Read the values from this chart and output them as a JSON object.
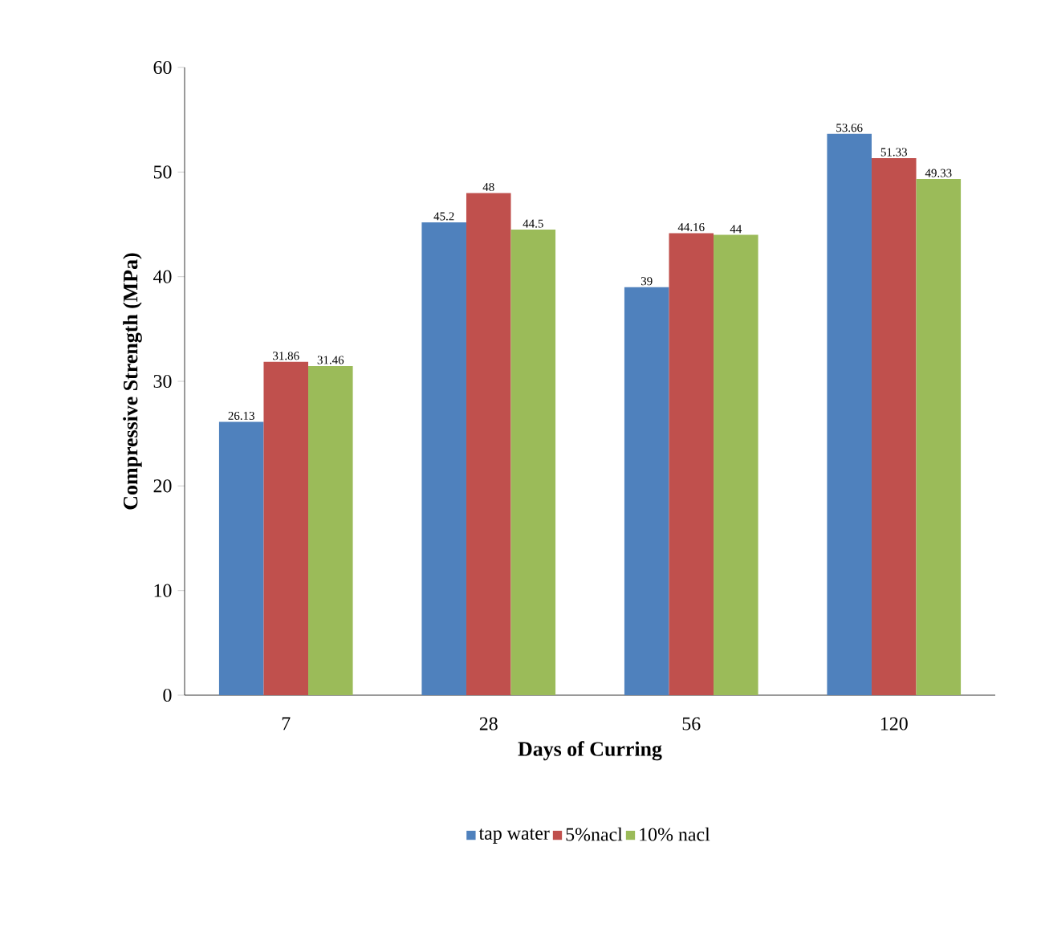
{
  "chart_data": {
    "type": "bar",
    "xlabel": "Days of Curring",
    "ylabel": "Compressive Strength (MPa)",
    "categories": [
      "7",
      "28",
      "56",
      "120"
    ],
    "series": [
      {
        "name": "tap water",
        "color": "#4f81bd",
        "values": [
          26.13,
          45.2,
          39,
          53.66
        ]
      },
      {
        "name": "5%nacl",
        "color": "#c0504d",
        "values": [
          31.86,
          48,
          44.16,
          51.33
        ]
      },
      {
        "name": "10% nacl",
        "color": "#9bbb59",
        "values": [
          31.46,
          44.5,
          44,
          49.33
        ]
      }
    ],
    "ylim": [
      0,
      60
    ],
    "yticks": [
      0,
      10,
      20,
      30,
      40,
      50,
      60
    ],
    "data_labels": true,
    "legend": "bottom",
    "grid": false
  }
}
